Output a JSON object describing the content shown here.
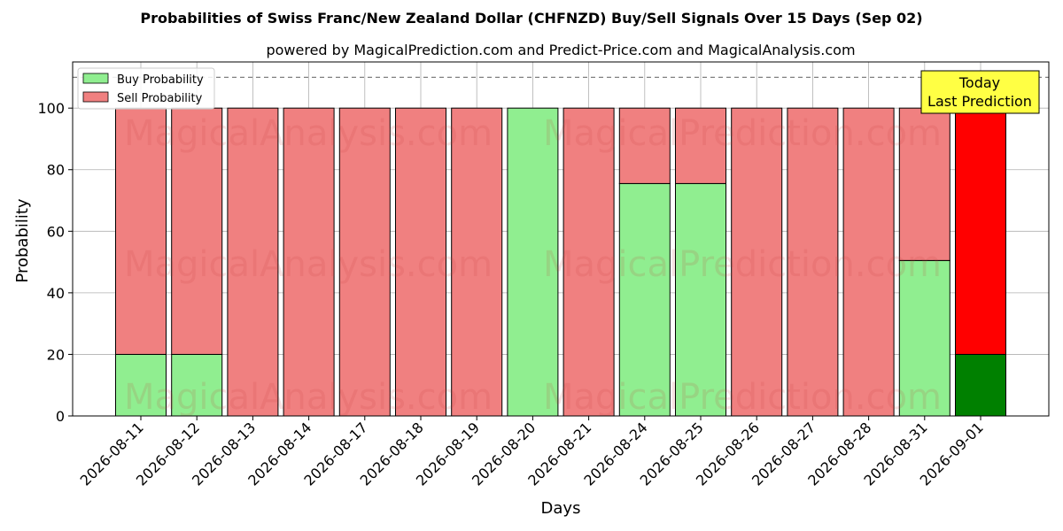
{
  "title": "Probabilities of Swiss Franc/New Zealand Dollar (CHFNZD) Buy/Sell Signals Over 15 Days (Sep 02)",
  "subtitle": "powered by MagicalPrediction.com and Predict-Price.com and MagicalAnalysis.com",
  "watermarks": [
    "MagicalAnalysis.com",
    "MagicalPrediction.com"
  ],
  "annotation": {
    "line1": "Today",
    "line2": "Last Prediction"
  },
  "colors": {
    "buy": "#90ee90",
    "sell": "#f08080",
    "buy_today": "#008000",
    "sell_today": "#ff0000",
    "annotation_bg": "#ffff44"
  },
  "chart_data": {
    "type": "bar",
    "stacked": true,
    "xlabel": "Days",
    "ylabel": "Probability",
    "ylim": [
      0,
      115
    ],
    "yticks": [
      0,
      20,
      40,
      60,
      80,
      100
    ],
    "reference_line": 110,
    "grid": true,
    "legend": "top-left",
    "categories": [
      "2026-08-11",
      "2026-08-12",
      "2026-08-13",
      "2026-08-14",
      "2026-08-17",
      "2026-08-18",
      "2026-08-19",
      "2026-08-20",
      "2026-08-21",
      "2026-08-24",
      "2026-08-25",
      "2026-08-26",
      "2026-08-27",
      "2026-08-28",
      "2026-08-31",
      "2026-09-01"
    ],
    "series": [
      {
        "name": "Buy Probability",
        "values": [
          20,
          20,
          0,
          0,
          0,
          0,
          0,
          100,
          0,
          75.5,
          75.5,
          0,
          0,
          0,
          50.5,
          20
        ]
      },
      {
        "name": "Sell Probability",
        "values": [
          80,
          80,
          100,
          100,
          100,
          100,
          100,
          0,
          100,
          24.5,
          24.5,
          100,
          100,
          100,
          49.5,
          80
        ]
      }
    ]
  }
}
